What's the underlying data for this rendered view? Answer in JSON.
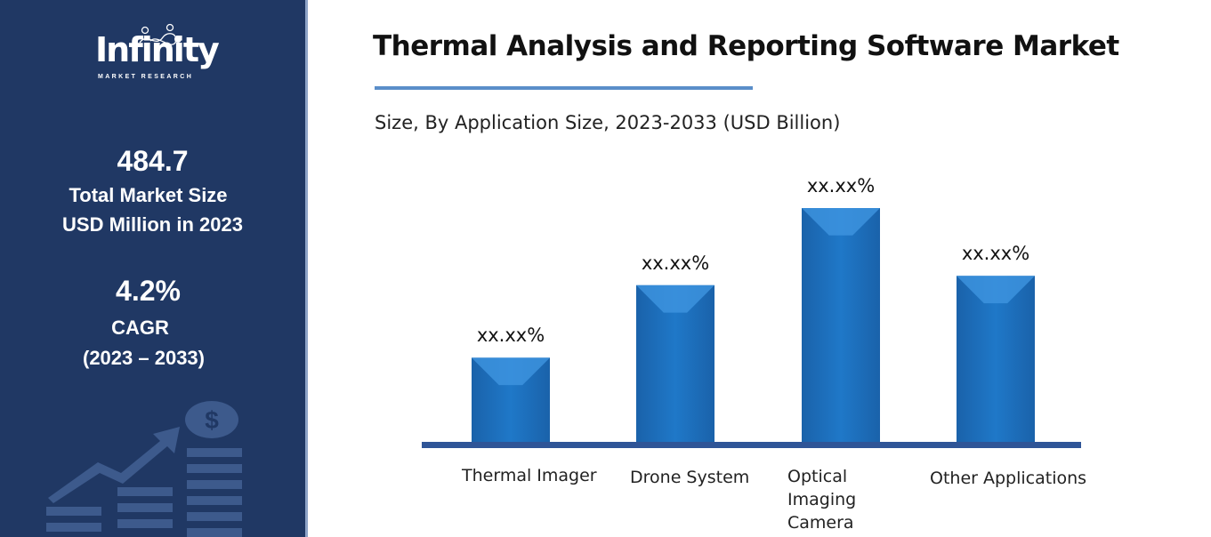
{
  "sidebar": {
    "logo_text": "Infinity",
    "logo_subtext": "MARKET RESEARCH",
    "market_size_value": "484.7",
    "market_size_label_1": "Total Market Size",
    "market_size_label_2": "USD Million in 2023",
    "cagr_value": "4.2%",
    "cagr_label": "CAGR",
    "cagr_period": "(2023 – 2033)",
    "decor_icon": "growth-chart-dollar-icon"
  },
  "colors": {
    "sidebar_bg": "#203864",
    "bar": "#1f74c4",
    "axis": "#2f5597",
    "accent_rule": "#5b8ec9"
  },
  "chart_data": {
    "type": "bar",
    "title": "Thermal Analysis and Reporting Software Market",
    "subtitle": "Size, By Application Size, 2023-2033 (USD Billion)",
    "categories": [
      "Thermal Imager",
      "Drone System",
      "Optical Imaging Camera",
      "Other Applications"
    ],
    "values": [
      36,
      67,
      100,
      71
    ],
    "data_labels": [
      "xx.xx%",
      "xx.xx%",
      "xx.xx%",
      "xx.xx%"
    ],
    "xlabel": "",
    "ylabel": "",
    "ylim": [
      0,
      100
    ],
    "grid": false,
    "legend": "none"
  }
}
